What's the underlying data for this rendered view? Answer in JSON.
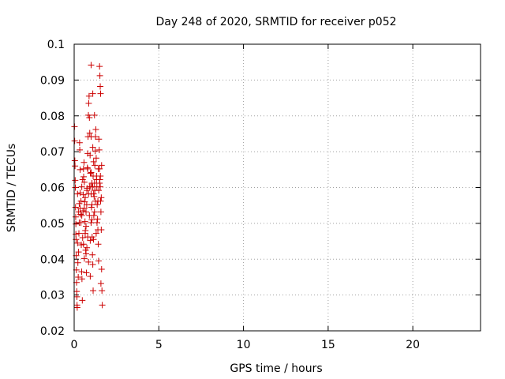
{
  "chart_data": {
    "type": "scatter",
    "title": "Day 248 of 2020, SRMTID for receiver p052",
    "xlabel": "GPS time / hours",
    "ylabel": "SRMTID / TECUs",
    "xlim": [
      0,
      24
    ],
    "ylim": [
      0.02,
      0.1
    ],
    "xticks": [
      "0",
      "5",
      "10",
      "15",
      "20"
    ],
    "yticks": [
      "0.02",
      "0.03",
      "0.04",
      "0.05",
      "0.06",
      "0.07",
      "0.08",
      "0.09",
      "0.1"
    ],
    "grid": true,
    "marker": "plus",
    "color": "#cc0000",
    "series": [
      {
        "points": [
          [
            0.02,
            0.077
          ],
          [
            0.03,
            0.073
          ],
          [
            0.04,
            0.0675
          ],
          [
            0.05,
            0.066
          ],
          [
            0.06,
            0.062
          ],
          [
            0.07,
            0.06
          ],
          [
            0.08,
            0.0545
          ],
          [
            0.09,
            0.0518
          ],
          [
            0.1,
            0.0498
          ],
          [
            0.1,
            0.047
          ],
          [
            0.11,
            0.0455
          ],
          [
            0.12,
            0.041
          ],
          [
            0.13,
            0.037
          ],
          [
            0.14,
            0.0335
          ],
          [
            0.15,
            0.031
          ],
          [
            0.16,
            0.0295
          ],
          [
            0.17,
            0.0272
          ],
          [
            0.18,
            0.0265
          ],
          [
            0.2,
            0.0445
          ],
          [
            0.22,
            0.039
          ],
          [
            0.24,
            0.035
          ],
          [
            0.26,
            0.042
          ],
          [
            0.28,
            0.0472
          ],
          [
            0.3,
            0.0555
          ],
          [
            0.32,
            0.0725
          ],
          [
            0.33,
            0.0705
          ],
          [
            0.35,
            0.065
          ],
          [
            0.36,
            0.0585
          ],
          [
            0.38,
            0.0525
          ],
          [
            0.4,
            0.0502
          ],
          [
            0.42,
            0.044
          ],
          [
            0.44,
            0.0365
          ],
          [
            0.46,
            0.0345
          ],
          [
            0.48,
            0.0285
          ],
          [
            0.5,
            0.046
          ],
          [
            0.52,
            0.0535
          ],
          [
            0.54,
            0.058
          ],
          [
            0.56,
            0.063
          ],
          [
            0.58,
            0.067
          ],
          [
            0.6,
            0.0615
          ],
          [
            0.62,
            0.056
          ],
          [
            0.64,
            0.0505
          ],
          [
            0.66,
            0.048
          ],
          [
            0.68,
            0.0425
          ],
          [
            0.7,
            0.0415
          ],
          [
            0.72,
            0.0362
          ],
          [
            0.74,
            0.0552
          ],
          [
            0.76,
            0.0598
          ],
          [
            0.78,
            0.0655
          ],
          [
            0.8,
            0.0695
          ],
          [
            0.82,
            0.0742
          ],
          [
            0.84,
            0.0802
          ],
          [
            0.86,
            0.0835
          ],
          [
            0.88,
            0.0855
          ],
          [
            0.9,
            0.0795
          ],
          [
            0.92,
            0.0752
          ],
          [
            0.94,
            0.069
          ],
          [
            0.96,
            0.064
          ],
          [
            0.98,
            0.0602
          ],
          [
            1.0,
            0.0582
          ],
          [
            1.02,
            0.0545
          ],
          [
            1.04,
            0.051
          ],
          [
            1.06,
            0.0462
          ],
          [
            1.08,
            0.0412
          ],
          [
            1.1,
            0.0385
          ],
          [
            1.12,
            0.0312
          ],
          [
            1.14,
            0.0455
          ],
          [
            1.16,
            0.0522
          ],
          [
            1.18,
            0.0575
          ],
          [
            1.2,
            0.0612
          ],
          [
            1.22,
            0.0662
          ],
          [
            1.24,
            0.0702
          ],
          [
            1.26,
            0.0742
          ],
          [
            1.28,
            0.0762
          ],
          [
            1.3,
            0.0682
          ],
          [
            1.32,
            0.0632
          ],
          [
            1.34,
            0.0602
          ],
          [
            1.36,
            0.0552
          ],
          [
            1.38,
            0.0512
          ],
          [
            1.4,
            0.0482
          ],
          [
            1.42,
            0.0442
          ],
          [
            1.44,
            0.0395
          ],
          [
            1.46,
            0.0735
          ],
          [
            1.48,
            0.0705
          ],
          [
            1.5,
            0.0652
          ],
          [
            1.52,
            0.0622
          ],
          [
            1.54,
            0.0602
          ],
          [
            1.56,
            0.0562
          ],
          [
            1.58,
            0.0532
          ],
          [
            1.6,
            0.0482
          ],
          [
            1.62,
            0.0372
          ],
          [
            1.64,
            0.0312
          ],
          [
            1.66,
            0.0272
          ],
          [
            1.5,
            0.0938
          ],
          [
            1.52,
            0.0912
          ],
          [
            1.54,
            0.0882
          ],
          [
            1.56,
            0.0862
          ],
          [
            1.0,
            0.0942
          ],
          [
            1.1,
            0.0862
          ],
          [
            1.2,
            0.0802
          ],
          [
            0.3,
            0.0502
          ],
          [
            0.35,
            0.0542
          ],
          [
            0.4,
            0.0562
          ],
          [
            0.45,
            0.0522
          ],
          [
            0.55,
            0.0442
          ],
          [
            0.6,
            0.0402
          ],
          [
            0.65,
            0.0472
          ],
          [
            0.7,
            0.0532
          ],
          [
            0.75,
            0.0592
          ],
          [
            0.8,
            0.0652
          ],
          [
            0.85,
            0.0582
          ],
          [
            0.9,
            0.0522
          ],
          [
            0.95,
            0.0452
          ],
          [
            1.05,
            0.0612
          ],
          [
            1.15,
            0.0672
          ],
          [
            1.25,
            0.0562
          ],
          [
            1.35,
            0.0502
          ],
          [
            1.45,
            0.0592
          ],
          [
            1.55,
            0.0632
          ],
          [
            1.62,
            0.0662
          ],
          [
            0.2,
            0.0582
          ],
          [
            0.25,
            0.0532
          ],
          [
            0.45,
            0.0602
          ],
          [
            0.55,
            0.0652
          ],
          [
            0.65,
            0.0572
          ],
          [
            0.75,
            0.0432
          ],
          [
            0.85,
            0.0392
          ],
          [
            0.95,
            0.0352
          ],
          [
            1.0,
            0.0502
          ],
          [
            1.05,
            0.0552
          ],
          [
            1.1,
            0.0602
          ],
          [
            1.15,
            0.0582
          ],
          [
            1.2,
            0.0532
          ],
          [
            1.3,
            0.0472
          ],
          [
            1.4,
            0.0562
          ],
          [
            1.5,
            0.0612
          ],
          [
            1.6,
            0.0572
          ],
          [
            1.58,
            0.0332
          ],
          [
            1.0,
            0.0742
          ],
          [
            1.1,
            0.0712
          ],
          [
            0.5,
            0.0622
          ],
          [
            0.6,
            0.0542
          ],
          [
            0.7,
            0.0492
          ],
          [
            0.8,
            0.0462
          ],
          [
            0.9,
            0.0602
          ],
          [
            1.0,
            0.0642
          ],
          [
            1.12,
            0.0632
          ],
          [
            1.22,
            0.0592
          ],
          [
            1.32,
            0.0622
          ],
          [
            1.42,
            0.0652
          ]
        ]
      }
    ]
  }
}
